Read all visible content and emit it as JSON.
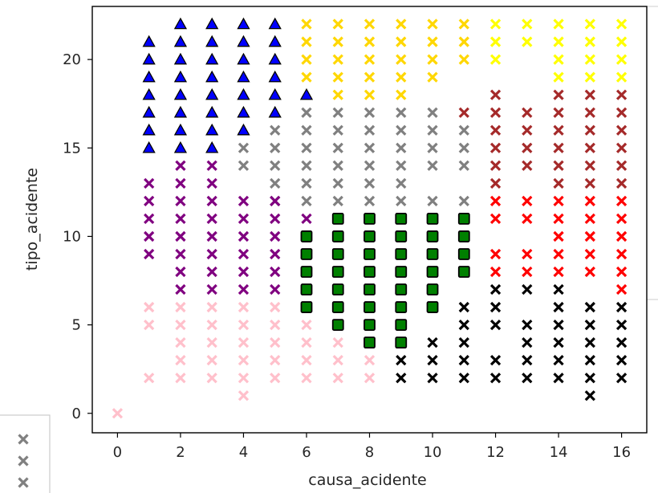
{
  "chart_data": {
    "type": "scatter",
    "title": "",
    "xlabel": "causa_acidente",
    "ylabel": "tipo_acidente",
    "xlim": [
      -0.8,
      16.8
    ],
    "ylim": [
      -1.1,
      23.0
    ],
    "xticks": [
      0,
      2,
      4,
      6,
      8,
      10,
      12,
      14,
      16
    ],
    "yticks": [
      0,
      5,
      10,
      15,
      20
    ],
    "grid": false,
    "legend": "partially visible bottom-left, cropped; shows three grey x markers",
    "series": [
      {
        "color": "#0000ff",
        "marker": "triangle",
        "edge": "#000000",
        "points": [
          [
            1,
            15
          ],
          [
            1,
            16
          ],
          [
            1,
            17
          ],
          [
            1,
            18
          ],
          [
            1,
            19
          ],
          [
            1,
            20
          ],
          [
            1,
            21
          ],
          [
            2,
            15
          ],
          [
            2,
            16
          ],
          [
            2,
            17
          ],
          [
            2,
            18
          ],
          [
            2,
            19
          ],
          [
            2,
            20
          ],
          [
            2,
            21
          ],
          [
            2,
            22
          ],
          [
            3,
            15
          ],
          [
            3,
            16
          ],
          [
            3,
            17
          ],
          [
            3,
            18
          ],
          [
            3,
            19
          ],
          [
            3,
            20
          ],
          [
            3,
            21
          ],
          [
            3,
            22
          ],
          [
            4,
            16
          ],
          [
            4,
            17
          ],
          [
            4,
            18
          ],
          [
            4,
            19
          ],
          [
            4,
            20
          ],
          [
            4,
            21
          ],
          [
            4,
            22
          ],
          [
            5,
            17
          ],
          [
            5,
            18
          ],
          [
            5,
            19
          ],
          [
            5,
            20
          ],
          [
            5,
            21
          ],
          [
            5,
            22
          ],
          [
            6,
            18
          ]
        ]
      },
      {
        "color": "#ffd700",
        "marker": "x",
        "points": [
          [
            6,
            19
          ],
          [
            6,
            20
          ],
          [
            6,
            21
          ],
          [
            6,
            22
          ],
          [
            7,
            18
          ],
          [
            7,
            19
          ],
          [
            7,
            20
          ],
          [
            7,
            21
          ],
          [
            7,
            22
          ],
          [
            8,
            18
          ],
          [
            8,
            19
          ],
          [
            8,
            20
          ],
          [
            8,
            21
          ],
          [
            8,
            22
          ],
          [
            9,
            18
          ],
          [
            9,
            19
          ],
          [
            9,
            20
          ],
          [
            9,
            21
          ],
          [
            9,
            22
          ],
          [
            10,
            19
          ],
          [
            10,
            20
          ],
          [
            10,
            21
          ],
          [
            10,
            22
          ],
          [
            11,
            20
          ],
          [
            11,
            21
          ],
          [
            11,
            22
          ]
        ]
      },
      {
        "color": "#ffff00",
        "marker": "x",
        "points": [
          [
            12,
            20
          ],
          [
            12,
            21
          ],
          [
            12,
            22
          ],
          [
            13,
            21
          ],
          [
            13,
            22
          ],
          [
            14,
            19
          ],
          [
            14,
            20
          ],
          [
            14,
            21
          ],
          [
            14,
            22
          ],
          [
            15,
            19
          ],
          [
            15,
            20
          ],
          [
            15,
            21
          ],
          [
            15,
            22
          ],
          [
            16,
            19
          ],
          [
            16,
            20
          ],
          [
            16,
            21
          ],
          [
            16,
            22
          ]
        ]
      },
      {
        "color": "#808080",
        "marker": "x",
        "points": [
          [
            4,
            14
          ],
          [
            4,
            15
          ],
          [
            5,
            12
          ],
          [
            5,
            13
          ],
          [
            5,
            14
          ],
          [
            5,
            15
          ],
          [
            5,
            16
          ],
          [
            6,
            12
          ],
          [
            6,
            13
          ],
          [
            6,
            14
          ],
          [
            6,
            15
          ],
          [
            6,
            16
          ],
          [
            6,
            17
          ],
          [
            7,
            12
          ],
          [
            7,
            13
          ],
          [
            7,
            14
          ],
          [
            7,
            15
          ],
          [
            7,
            16
          ],
          [
            7,
            17
          ],
          [
            8,
            12
          ],
          [
            8,
            13
          ],
          [
            8,
            14
          ],
          [
            8,
            15
          ],
          [
            8,
            16
          ],
          [
            8,
            17
          ],
          [
            9,
            12
          ],
          [
            9,
            13
          ],
          [
            9,
            14
          ],
          [
            9,
            15
          ],
          [
            9,
            16
          ],
          [
            9,
            17
          ],
          [
            10,
            12
          ],
          [
            10,
            14
          ],
          [
            10,
            15
          ],
          [
            10,
            16
          ],
          [
            10,
            17
          ],
          [
            11,
            12
          ],
          [
            11,
            14
          ],
          [
            11,
            15
          ],
          [
            11,
            16
          ]
        ]
      },
      {
        "color": "#a52a2a",
        "marker": "x",
        "points": [
          [
            11,
            17
          ],
          [
            12,
            13
          ],
          [
            12,
            14
          ],
          [
            12,
            15
          ],
          [
            12,
            16
          ],
          [
            12,
            17
          ],
          [
            12,
            18
          ],
          [
            13,
            14
          ],
          [
            13,
            15
          ],
          [
            13,
            16
          ],
          [
            13,
            17
          ],
          [
            14,
            13
          ],
          [
            14,
            14
          ],
          [
            14,
            15
          ],
          [
            14,
            16
          ],
          [
            14,
            17
          ],
          [
            14,
            18
          ],
          [
            15,
            13
          ],
          [
            15,
            14
          ],
          [
            15,
            15
          ],
          [
            15,
            16
          ],
          [
            15,
            17
          ],
          [
            15,
            18
          ],
          [
            16,
            13
          ],
          [
            16,
            14
          ],
          [
            16,
            15
          ],
          [
            16,
            16
          ],
          [
            16,
            17
          ],
          [
            16,
            18
          ]
        ]
      },
      {
        "color": "#ff0000",
        "marker": "x",
        "points": [
          [
            12,
            8
          ],
          [
            12,
            9
          ],
          [
            12,
            11
          ],
          [
            12,
            12
          ],
          [
            13,
            8
          ],
          [
            13,
            9
          ],
          [
            13,
            11
          ],
          [
            13,
            12
          ],
          [
            14,
            8
          ],
          [
            14,
            9
          ],
          [
            14,
            10
          ],
          [
            14,
            11
          ],
          [
            14,
            12
          ],
          [
            15,
            8
          ],
          [
            15,
            9
          ],
          [
            15,
            10
          ],
          [
            15,
            11
          ],
          [
            15,
            12
          ],
          [
            16,
            7
          ],
          [
            16,
            8
          ],
          [
            16,
            9
          ],
          [
            16,
            10
          ],
          [
            16,
            11
          ],
          [
            16,
            12
          ]
        ]
      },
      {
        "color": "#800080",
        "marker": "x",
        "points": [
          [
            1,
            9
          ],
          [
            1,
            10
          ],
          [
            1,
            11
          ],
          [
            1,
            12
          ],
          [
            1,
            13
          ],
          [
            2,
            7
          ],
          [
            2,
            8
          ],
          [
            2,
            9
          ],
          [
            2,
            10
          ],
          [
            2,
            11
          ],
          [
            2,
            12
          ],
          [
            2,
            13
          ],
          [
            2,
            14
          ],
          [
            3,
            7
          ],
          [
            3,
            8
          ],
          [
            3,
            9
          ],
          [
            3,
            10
          ],
          [
            3,
            11
          ],
          [
            3,
            12
          ],
          [
            3,
            13
          ],
          [
            3,
            14
          ],
          [
            4,
            7
          ],
          [
            4,
            8
          ],
          [
            4,
            9
          ],
          [
            4,
            10
          ],
          [
            4,
            11
          ],
          [
            4,
            12
          ],
          [
            5,
            7
          ],
          [
            5,
            8
          ],
          [
            5,
            9
          ],
          [
            5,
            10
          ],
          [
            5,
            11
          ],
          [
            5,
            12
          ],
          [
            6,
            11
          ]
        ]
      },
      {
        "color": "#008000",
        "marker": "square",
        "edge": "#000000",
        "points": [
          [
            6,
            6
          ],
          [
            6,
            7
          ],
          [
            6,
            8
          ],
          [
            6,
            9
          ],
          [
            6,
            10
          ],
          [
            7,
            5
          ],
          [
            7,
            6
          ],
          [
            7,
            7
          ],
          [
            7,
            8
          ],
          [
            7,
            9
          ],
          [
            7,
            10
          ],
          [
            7,
            11
          ],
          [
            8,
            4
          ],
          [
            8,
            5
          ],
          [
            8,
            6
          ],
          [
            8,
            7
          ],
          [
            8,
            8
          ],
          [
            8,
            9
          ],
          [
            8,
            10
          ],
          [
            8,
            11
          ],
          [
            9,
            4
          ],
          [
            9,
            5
          ],
          [
            9,
            6
          ],
          [
            9,
            7
          ],
          [
            9,
            8
          ],
          [
            9,
            9
          ],
          [
            9,
            10
          ],
          [
            9,
            11
          ],
          [
            10,
            6
          ],
          [
            10,
            7
          ],
          [
            10,
            8
          ],
          [
            10,
            9
          ],
          [
            10,
            10
          ],
          [
            10,
            11
          ],
          [
            11,
            8
          ],
          [
            11,
            9
          ],
          [
            11,
            10
          ],
          [
            11,
            11
          ]
        ]
      },
      {
        "color": "#ffc0cb",
        "marker": "x",
        "points": [
          [
            0,
            0
          ],
          [
            1,
            2
          ],
          [
            1,
            5
          ],
          [
            1,
            6
          ],
          [
            2,
            2
          ],
          [
            2,
            3
          ],
          [
            2,
            4
          ],
          [
            2,
            5
          ],
          [
            2,
            6
          ],
          [
            3,
            2
          ],
          [
            3,
            3
          ],
          [
            3,
            4
          ],
          [
            3,
            5
          ],
          [
            3,
            6
          ],
          [
            4,
            1
          ],
          [
            4,
            2
          ],
          [
            4,
            3
          ],
          [
            4,
            4
          ],
          [
            4,
            5
          ],
          [
            4,
            6
          ],
          [
            5,
            2
          ],
          [
            5,
            3
          ],
          [
            5,
            4
          ],
          [
            5,
            5
          ],
          [
            5,
            6
          ],
          [
            6,
            2
          ],
          [
            6,
            3
          ],
          [
            6,
            4
          ],
          [
            6,
            5
          ],
          [
            7,
            2
          ],
          [
            7,
            3
          ],
          [
            7,
            4
          ],
          [
            8,
            2
          ],
          [
            8,
            3
          ]
        ]
      },
      {
        "color": "#000000",
        "marker": "x",
        "points": [
          [
            9,
            2
          ],
          [
            9,
            3
          ],
          [
            10,
            2
          ],
          [
            10,
            3
          ],
          [
            10,
            4
          ],
          [
            11,
            2
          ],
          [
            11,
            3
          ],
          [
            11,
            4
          ],
          [
            11,
            5
          ],
          [
            11,
            6
          ],
          [
            12,
            2
          ],
          [
            12,
            3
          ],
          [
            12,
            5
          ],
          [
            12,
            6
          ],
          [
            12,
            7
          ],
          [
            13,
            2
          ],
          [
            13,
            3
          ],
          [
            13,
            4
          ],
          [
            13,
            5
          ],
          [
            13,
            7
          ],
          [
            14,
            2
          ],
          [
            14,
            3
          ],
          [
            14,
            4
          ],
          [
            14,
            5
          ],
          [
            14,
            6
          ],
          [
            14,
            7
          ],
          [
            15,
            1
          ],
          [
            15,
            2
          ],
          [
            15,
            3
          ],
          [
            15,
            4
          ],
          [
            15,
            5
          ],
          [
            15,
            6
          ],
          [
            16,
            2
          ],
          [
            16,
            3
          ],
          [
            16,
            4
          ],
          [
            16,
            5
          ],
          [
            16,
            6
          ]
        ]
      }
    ],
    "legend_markers": [
      "#808080",
      "#808080",
      "#808080"
    ]
  }
}
